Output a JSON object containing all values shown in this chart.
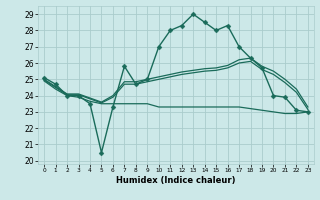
{
  "title": "",
  "xlabel": "Humidex (Indice chaleur)",
  "bg_color": "#cce8e8",
  "grid_color": "#aacccc",
  "line_color": "#1a6b5a",
  "xlim": [
    -0.5,
    23.5
  ],
  "ylim": [
    19.8,
    29.5
  ],
  "yticks": [
    20,
    21,
    22,
    23,
    24,
    25,
    26,
    27,
    28,
    29
  ],
  "xticks": [
    0,
    1,
    2,
    3,
    4,
    5,
    6,
    7,
    8,
    9,
    10,
    11,
    12,
    13,
    14,
    15,
    16,
    17,
    18,
    19,
    20,
    21,
    22,
    23
  ],
  "series": [
    {
      "x": [
        0,
        1,
        2,
        3,
        4,
        5,
        6,
        7,
        8,
        9,
        10,
        11,
        12,
        13,
        14,
        15,
        16,
        17,
        18,
        19,
        20,
        21,
        22,
        23
      ],
      "y": [
        25.1,
        24.7,
        24.0,
        24.0,
        23.5,
        20.5,
        23.3,
        25.8,
        24.7,
        25.0,
        27.0,
        28.0,
        28.3,
        29.0,
        28.5,
        28.0,
        28.3,
        27.0,
        26.3,
        25.7,
        24.0,
        23.9,
        23.1,
        23.0
      ],
      "marker": "D",
      "markersize": 2.5,
      "linewidth": 1.0,
      "with_marker": true
    },
    {
      "x": [
        0,
        1,
        2,
        3,
        4,
        5,
        6,
        7,
        8,
        9,
        10,
        11,
        12,
        13,
        14,
        15,
        16,
        17,
        18,
        19,
        20,
        21,
        22,
        23
      ],
      "y": [
        25.0,
        24.55,
        24.1,
        24.1,
        23.85,
        23.6,
        24.0,
        24.85,
        24.85,
        25.0,
        25.15,
        25.3,
        25.45,
        25.55,
        25.65,
        25.7,
        25.85,
        26.2,
        26.3,
        25.8,
        25.5,
        25.0,
        24.4,
        23.3
      ],
      "marker": null,
      "linewidth": 0.9,
      "with_marker": false
    },
    {
      "x": [
        0,
        1,
        2,
        3,
        4,
        5,
        6,
        7,
        8,
        9,
        10,
        11,
        12,
        13,
        14,
        15,
        16,
        17,
        18,
        19,
        20,
        21,
        22,
        23
      ],
      "y": [
        24.95,
        24.5,
        24.05,
        24.05,
        23.8,
        23.55,
        23.9,
        24.7,
        24.7,
        24.85,
        25.0,
        25.15,
        25.3,
        25.4,
        25.5,
        25.55,
        25.7,
        26.0,
        26.1,
        25.6,
        25.3,
        24.8,
        24.2,
        23.15
      ],
      "marker": null,
      "linewidth": 0.9,
      "with_marker": false
    },
    {
      "x": [
        0,
        1,
        2,
        3,
        4,
        5,
        6,
        7,
        8,
        9,
        10,
        11,
        12,
        13,
        14,
        15,
        16,
        17,
        18,
        19,
        20,
        21,
        22,
        23
      ],
      "y": [
        24.9,
        24.4,
        24.0,
        23.9,
        23.65,
        23.5,
        23.5,
        23.5,
        23.5,
        23.5,
        23.3,
        23.3,
        23.3,
        23.3,
        23.3,
        23.3,
        23.3,
        23.3,
        23.2,
        23.1,
        23.0,
        22.9,
        22.9,
        23.0
      ],
      "marker": null,
      "linewidth": 0.9,
      "with_marker": false
    }
  ]
}
